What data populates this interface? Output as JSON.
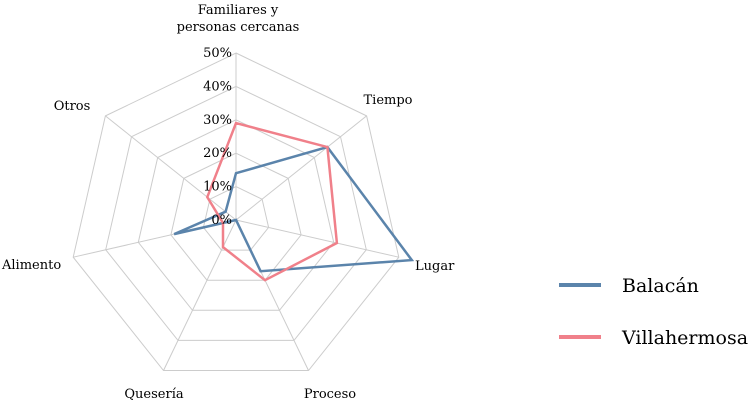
{
  "chart_data": {
    "type": "radar",
    "categories": [
      "Familiares y personas cercanas",
      "Tiempo",
      "Lugar",
      "Proceso",
      "Quesería",
      "Alimento",
      "Otros"
    ],
    "category_lines": [
      [
        "Familiares y",
        "personas cercanas"
      ],
      [
        "Tiempo"
      ],
      [
        "Lugar"
      ],
      [
        "Proceso"
      ],
      [
        "Quesería"
      ],
      [
        "Alimento"
      ],
      [
        "Otros"
      ]
    ],
    "rlim": [
      0,
      50
    ],
    "ticks": [
      "0%",
      "10%",
      "20%",
      "30%",
      "40%",
      "50%"
    ],
    "grid": true,
    "legend_position": "right",
    "series": [
      {
        "name": "Balacán",
        "color": "#5b84ab",
        "values": [
          14,
          35,
          54,
          17,
          0,
          19,
          4
        ]
      },
      {
        "name": "Villahermosa",
        "color": "#f0808a",
        "values": [
          29,
          35,
          31,
          20,
          9,
          4,
          11
        ]
      }
    ]
  }
}
